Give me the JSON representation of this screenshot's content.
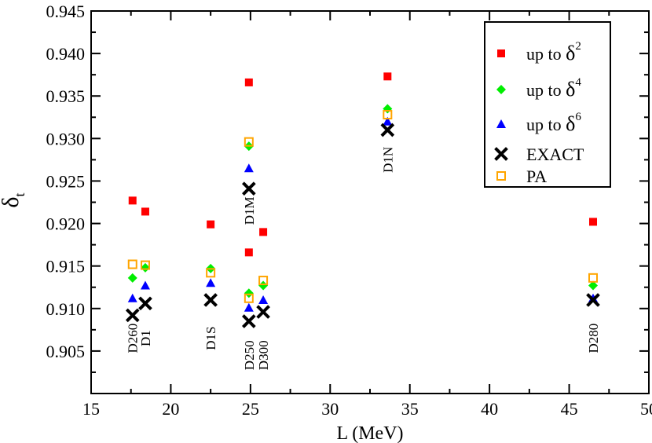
{
  "chart_data": {
    "type": "scatter",
    "xlabel": "L (MeV)",
    "ylabel_main": "δ",
    "ylabel_sub": "t",
    "xlim": [
      15,
      50
    ],
    "ylim": [
      0.9,
      0.945
    ],
    "xticks": [
      15,
      20,
      25,
      30,
      35,
      40,
      45,
      50
    ],
    "xtick_labels": [
      "15",
      "20",
      "25",
      "30",
      "35",
      "40",
      "45",
      "50"
    ],
    "yticks": [
      0.905,
      0.91,
      0.915,
      0.92,
      0.925,
      0.93,
      0.935,
      0.94,
      0.945
    ],
    "ytick_labels": [
      "0.905",
      "0.910",
      "0.915",
      "0.920",
      "0.925",
      "0.930",
      "0.935",
      "0.940",
      "0.945"
    ],
    "grid": false,
    "legend_position": "top-right",
    "legend": [
      {
        "prefix": "up to",
        "base": "δ",
        "sup": "2"
      },
      {
        "prefix": "up to",
        "base": "δ",
        "sup": "4"
      },
      {
        "prefix": "up to",
        "base": "δ",
        "sup": "6"
      },
      {
        "prefix": "",
        "base": "EXACT",
        "sup": ""
      },
      {
        "prefix": "",
        "base": "PA",
        "sup": ""
      }
    ],
    "series": [
      {
        "name": "up to δ^2",
        "marker": "square-filled",
        "color": "#ff0000",
        "points": [
          {
            "x": 17.6,
            "y": 0.9227
          },
          {
            "x": 18.4,
            "y": 0.9214
          },
          {
            "x": 22.5,
            "y": 0.9199
          },
          {
            "x": 24.9,
            "y": 0.9366
          },
          {
            "x": 24.9,
            "y": 0.9166
          },
          {
            "x": 25.8,
            "y": 0.919
          },
          {
            "x": 33.6,
            "y": 0.9373
          },
          {
            "x": 46.5,
            "y": 0.9202
          }
        ]
      },
      {
        "name": "up to δ^4",
        "marker": "diamond",
        "color": "#00ee00",
        "points": [
          {
            "x": 17.6,
            "y": 0.9136
          },
          {
            "x": 18.4,
            "y": 0.9148
          },
          {
            "x": 22.5,
            "y": 0.9147
          },
          {
            "x": 24.9,
            "y": 0.9291
          },
          {
            "x": 24.9,
            "y": 0.9118
          },
          {
            "x": 25.8,
            "y": 0.9127
          },
          {
            "x": 33.6,
            "y": 0.9335
          },
          {
            "x": 46.5,
            "y": 0.9127
          }
        ]
      },
      {
        "name": "up to δ^6",
        "marker": "triangle",
        "color": "#0000ff",
        "points": [
          {
            "x": 17.6,
            "y": 0.9112
          },
          {
            "x": 18.4,
            "y": 0.9127
          },
          {
            "x": 22.5,
            "y": 0.913
          },
          {
            "x": 24.9,
            "y": 0.9265
          },
          {
            "x": 24.9,
            "y": 0.9101
          },
          {
            "x": 25.8,
            "y": 0.911
          },
          {
            "x": 33.6,
            "y": 0.932
          },
          {
            "x": 46.5,
            "y": 0.9112
          }
        ]
      },
      {
        "name": "EXACT",
        "marker": "cross",
        "color": "#000000",
        "points": [
          {
            "x": 17.6,
            "y": 0.9092
          },
          {
            "x": 18.4,
            "y": 0.9106
          },
          {
            "x": 22.5,
            "y": 0.911
          },
          {
            "x": 24.9,
            "y": 0.9241
          },
          {
            "x": 24.9,
            "y": 0.9085
          },
          {
            "x": 25.8,
            "y": 0.9096
          },
          {
            "x": 33.6,
            "y": 0.931
          },
          {
            "x": 46.5,
            "y": 0.911
          }
        ]
      },
      {
        "name": "PA",
        "marker": "square-open",
        "color": "#ffa500",
        "points": [
          {
            "x": 17.6,
            "y": 0.9152
          },
          {
            "x": 18.4,
            "y": 0.9151
          },
          {
            "x": 22.5,
            "y": 0.9142
          },
          {
            "x": 24.9,
            "y": 0.9296
          },
          {
            "x": 24.9,
            "y": 0.9112
          },
          {
            "x": 25.8,
            "y": 0.9133
          },
          {
            "x": 33.6,
            "y": 0.9328
          },
          {
            "x": 46.5,
            "y": 0.9136
          }
        ]
      }
    ],
    "annotations": [
      {
        "text": "D260",
        "x": 17.6,
        "y": 0.9065
      },
      {
        "text": "D1",
        "x": 18.4,
        "y": 0.9065
      },
      {
        "text": "D1S",
        "x": 22.5,
        "y": 0.9065
      },
      {
        "text": "D250",
        "x": 24.9,
        "y": 0.9045
      },
      {
        "text": "D300",
        "x": 25.8,
        "y": 0.9045
      },
      {
        "text": "D1M",
        "x": 24.9,
        "y": 0.9215
      },
      {
        "text": "D1N",
        "x": 33.6,
        "y": 0.9275
      },
      {
        "text": "D280",
        "x": 46.5,
        "y": 0.9065
      }
    ]
  }
}
